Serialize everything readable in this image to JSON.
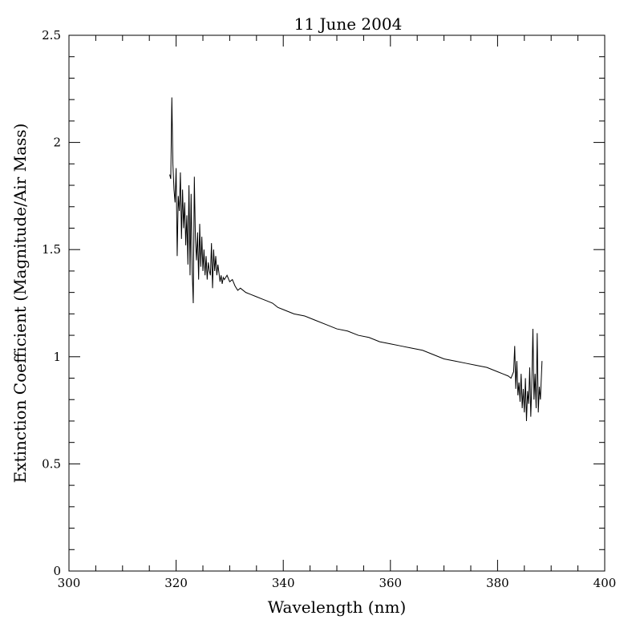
{
  "chart_data": {
    "type": "line",
    "title": "11 June 2004",
    "xlabel": "Wavelength (nm)",
    "ylabel": "Extinction Coefficient (Magnitude/Air Mass)",
    "xlim": [
      300,
      400
    ],
    "ylim": [
      0,
      2.5
    ],
    "xticks": [
      300,
      320,
      340,
      360,
      380,
      400
    ],
    "yticks": [
      0,
      0.5,
      1,
      1.5,
      2,
      2.5
    ],
    "grid": false,
    "legend": "none",
    "line_color": "#000000",
    "series": [
      {
        "x": [
          318.8,
          319.0,
          319.2,
          319.4,
          319.6,
          319.8,
          320.0,
          320.2,
          320.4,
          320.6,
          320.8,
          321.0,
          321.2,
          321.4,
          321.6,
          321.8,
          322.0,
          322.2,
          322.4,
          322.6,
          322.8,
          323.0,
          323.2,
          323.4,
          323.6,
          323.8,
          324.0,
          324.2,
          324.4,
          324.6,
          324.8,
          325.0,
          325.2,
          325.4,
          325.6,
          325.8,
          326.0,
          326.2,
          326.4,
          326.6,
          326.8,
          327.0,
          327.2,
          327.4,
          327.6,
          327.8,
          328.0,
          328.2,
          328.4,
          328.6,
          328.8,
          329.0,
          329.5,
          330.0,
          330.5,
          331.0,
          331.5,
          332.0,
          333.0,
          334.0,
          335.0,
          336.0,
          337.0,
          338.0,
          339.0,
          340.0,
          342.0,
          344.0,
          346.0,
          348.0,
          350.0,
          352.0,
          354.0,
          356.0,
          358.0,
          360.0,
          362.0,
          364.0,
          366.0,
          368.0,
          370.0,
          372.0,
          374.0,
          376.0,
          378.0,
          380.0,
          381.0,
          382.0,
          382.5,
          383.0,
          383.2,
          383.4,
          383.6,
          383.8,
          384.0,
          384.2,
          384.4,
          384.6,
          384.8,
          385.0,
          385.2,
          385.4,
          385.6,
          385.8,
          386.0,
          386.2,
          386.4,
          386.6,
          386.8,
          387.0,
          387.2,
          387.4,
          387.6,
          387.8,
          388.0,
          388.3
        ],
        "y": [
          1.85,
          1.83,
          2.21,
          1.9,
          1.78,
          1.72,
          1.88,
          1.47,
          1.75,
          1.68,
          1.86,
          1.55,
          1.78,
          1.6,
          1.72,
          1.52,
          1.66,
          1.43,
          1.8,
          1.38,
          1.76,
          1.4,
          1.25,
          1.84,
          1.55,
          1.45,
          1.58,
          1.36,
          1.62,
          1.42,
          1.56,
          1.4,
          1.5,
          1.38,
          1.47,
          1.36,
          1.44,
          1.4,
          1.38,
          1.53,
          1.32,
          1.5,
          1.4,
          1.47,
          1.38,
          1.43,
          1.39,
          1.35,
          1.38,
          1.34,
          1.37,
          1.36,
          1.38,
          1.35,
          1.36,
          1.33,
          1.31,
          1.32,
          1.3,
          1.29,
          1.28,
          1.27,
          1.26,
          1.25,
          1.23,
          1.22,
          1.2,
          1.19,
          1.17,
          1.15,
          1.13,
          1.12,
          1.1,
          1.09,
          1.07,
          1.06,
          1.05,
          1.04,
          1.03,
          1.01,
          0.99,
          0.98,
          0.97,
          0.96,
          0.95,
          0.93,
          0.92,
          0.91,
          0.9,
          0.93,
          1.05,
          0.85,
          0.98,
          0.82,
          0.88,
          0.79,
          0.92,
          0.76,
          0.85,
          0.74,
          0.9,
          0.7,
          0.84,
          0.78,
          0.95,
          0.72,
          0.88,
          1.13,
          0.8,
          0.92,
          0.76,
          1.11,
          0.74,
          0.86,
          0.8,
          0.98
        ]
      }
    ]
  }
}
